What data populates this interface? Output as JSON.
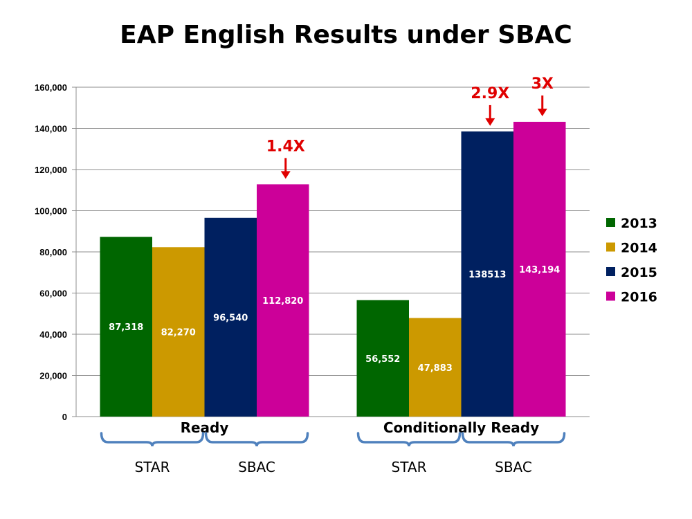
{
  "chart_data": {
    "type": "bar",
    "title": "EAP English Results under SBAC",
    "categories": [
      "Ready",
      "Conditionally Ready"
    ],
    "series": [
      {
        "name": "2013",
        "color": "#006600",
        "values": [
          87318,
          56552
        ],
        "labels": [
          "87,318",
          "56,552"
        ]
      },
      {
        "name": "2014",
        "color": "#cc9900",
        "values": [
          82270,
          47883
        ],
        "labels": [
          "82,270",
          "47,883"
        ]
      },
      {
        "name": "2015",
        "color": "#002060",
        "values": [
          96540,
          138513
        ],
        "labels": [
          "96,540",
          "138513"
        ]
      },
      {
        "name": "2016",
        "color": "#cc0099",
        "values": [
          112820,
          143194
        ],
        "labels": [
          "112,820",
          "143,194"
        ]
      }
    ],
    "ylim": [
      0,
      160000
    ],
    "yticks": [
      "0",
      "20,000",
      "40,000",
      "60,000",
      "80,000",
      "100,000",
      "120,000",
      "140,000",
      "160,000"
    ],
    "grid": true,
    "legend_position": "right",
    "annotations": [
      {
        "text": "1.4X",
        "category": 0,
        "series": 3,
        "color": "#e00000"
      },
      {
        "text": "2.9X",
        "category": 1,
        "series": 2,
        "color": "#e00000"
      },
      {
        "text": "3X",
        "category": 1,
        "series": 3,
        "color": "#e00000"
      }
    ],
    "group_brackets": [
      {
        "label": "STAR",
        "category": 0,
        "series": [
          0,
          1
        ]
      },
      {
        "label": "SBAC",
        "category": 0,
        "series": [
          2,
          3
        ]
      },
      {
        "label": "STAR",
        "category": 1,
        "series": [
          0,
          1
        ]
      },
      {
        "label": "SBAC",
        "category": 1,
        "series": [
          2,
          3
        ]
      }
    ],
    "bracket_color": "#4f81bd"
  }
}
